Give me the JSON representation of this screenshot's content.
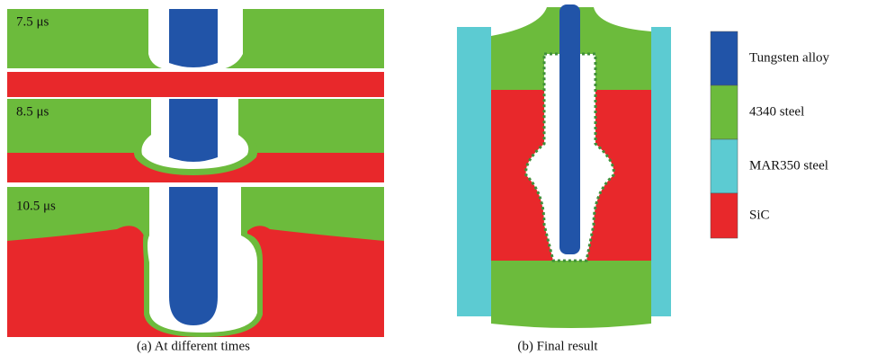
{
  "panels": {
    "a": {
      "frames": [
        {
          "time": "7.5 μs"
        },
        {
          "time": "8.5 μs"
        },
        {
          "time": "10.5 μs"
        }
      ],
      "caption": "(a) At different times"
    },
    "b": {
      "caption": "(b) Final result"
    }
  },
  "legend": {
    "items": [
      {
        "label": "Tungsten alloy",
        "color": "#2154a8"
      },
      {
        "label": "4340 steel",
        "color": "#6cbb3c"
      },
      {
        "label": "MAR350 steel",
        "color": "#5ccbd2"
      },
      {
        "label": "SiC",
        "color": "#e8282b"
      }
    ]
  }
}
